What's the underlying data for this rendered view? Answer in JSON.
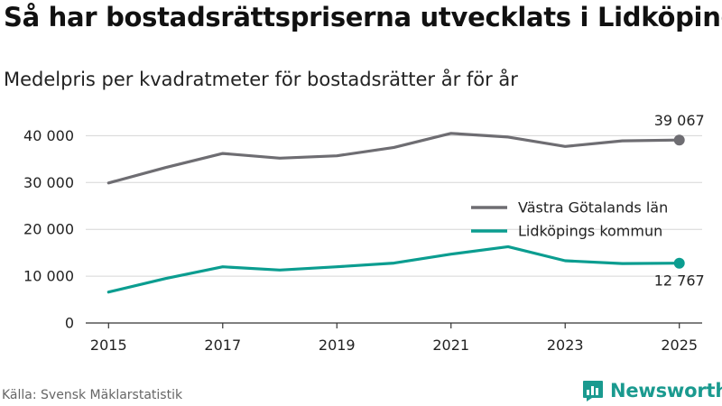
{
  "header": {
    "title": "Så har bostadsrättspriserna utvecklats i Lidköping",
    "subtitle": "Medelpris per kvadratmeter för bostadsrätter år för år"
  },
  "footer": {
    "source": "Källa: Svensk Mäklarstatistik",
    "brand": "Newsworthy",
    "brand_icon": "newsworthy-logo-icon"
  },
  "chart_data": {
    "type": "line",
    "title": "Så har bostadsrättspriserna utvecklats i Lidköping",
    "subtitle": "Medelpris per kvadratmeter för bostadsrätter år för år",
    "xlabel": "",
    "ylabel": "",
    "x": [
      2015,
      2016,
      2017,
      2018,
      2019,
      2020,
      2021,
      2022,
      2023,
      2024,
      2025
    ],
    "xlim": [
      2014.6,
      2025.4
    ],
    "ylim": [
      0,
      42000
    ],
    "xticks": [
      2015,
      2017,
      2019,
      2021,
      2023,
      2025
    ],
    "xtick_labels": [
      "2015",
      "2017",
      "2019",
      "2021",
      "2023",
      "2025"
    ],
    "yticks": [
      0,
      10000,
      20000,
      30000,
      40000
    ],
    "ytick_labels": [
      "0",
      "10 000",
      "20 000",
      "30 000",
      "40 000"
    ],
    "grid": true,
    "legend_position": "right",
    "series": [
      {
        "name": "Västra Götalands län",
        "color": "#6e6d72",
        "values": [
          29900,
          33200,
          36200,
          35200,
          35700,
          37500,
          40500,
          39700,
          37700,
          38900,
          39067
        ],
        "end_label": "39 067",
        "end_label_position": "above"
      },
      {
        "name": "Lidköpings kommun",
        "color": "#0b9d90",
        "values": [
          6600,
          9500,
          12000,
          11300,
          12000,
          12800,
          14700,
          16300,
          13300,
          12700,
          12767
        ],
        "end_label": "12 767",
        "end_label_position": "below"
      }
    ]
  }
}
